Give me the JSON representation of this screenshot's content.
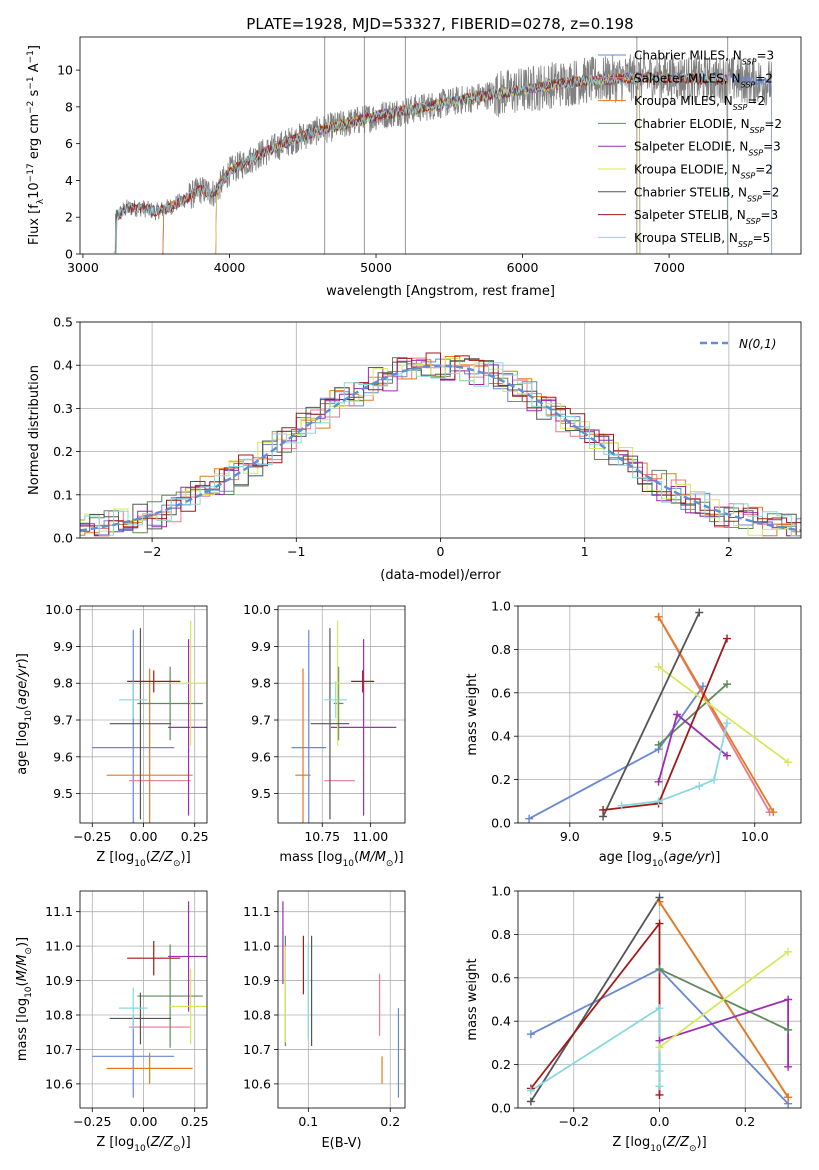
{
  "figure": {
    "title": "PLATE=1928, MJD=53327, FIBERID=0278, z=0.198"
  },
  "colors": {
    "Chabrier MILES": "#6688d5",
    "Salpeter MILES": "#e87a91",
    "Kroupa MILES": "#e27a22",
    "Chabrier ELODIE": "#5f8a5f",
    "Salpeter ELODIE": "#9b2fae",
    "Kroupa ELODIE": "#d8e85a",
    "Chabrier STELIB": "#555555",
    "Salpeter STELIB": "#a11a1a",
    "Kroupa STELIB": "#88d8e0",
    "data": "#808080"
  },
  "chart_data": [
    {
      "panel": "spectrum",
      "type": "line",
      "xlabel": "wavelength [Angstrom, rest frame]",
      "ylabel": "Flux [f_λ10^-17 erg cm^-2 s^-1 A^-1]",
      "xlim": [
        2980,
        7900
      ],
      "ylim": [
        0,
        11.8
      ],
      "xticks": [
        3000,
        4000,
        5000,
        6000,
        7000
      ],
      "yticks": [
        0,
        2,
        4,
        6,
        8,
        10
      ],
      "legend_loc": "upper right",
      "legend": [
        {
          "model": "Chabrier MILES",
          "nssp": "3"
        },
        {
          "model": "Salpeter MILES",
          "nssp": "2"
        },
        {
          "model": "Kroupa MILES",
          "nssp": "2"
        },
        {
          "model": "Chabrier ELODIE",
          "nssp": "2"
        },
        {
          "model": "Salpeter ELODIE",
          "nssp": "3"
        },
        {
          "model": "Kroupa ELODIE",
          "nssp": "2"
        },
        {
          "model": "Chabrier STELIB",
          "nssp": "2"
        },
        {
          "model": "Salpeter STELIB",
          "nssp": "3"
        },
        {
          "model": "Kroupa STELIB",
          "nssp": "5"
        }
      ],
      "continuum": [
        [
          3210,
          0.2
        ],
        [
          3220,
          2.0
        ],
        [
          3300,
          2.5
        ],
        [
          3400,
          2.5
        ],
        [
          3500,
          2.3
        ],
        [
          3600,
          2.6
        ],
        [
          3700,
          3.0
        ],
        [
          3800,
          3.5
        ],
        [
          3900,
          3.3
        ],
        [
          4000,
          4.5
        ],
        [
          4200,
          5.4
        ],
        [
          4400,
          6.1
        ],
        [
          4600,
          6.7
        ],
        [
          4800,
          7.1
        ],
        [
          5000,
          7.5
        ],
        [
          5200,
          7.8
        ],
        [
          5400,
          8.1
        ],
        [
          5600,
          8.4
        ],
        [
          5800,
          8.7
        ],
        [
          6000,
          8.9
        ],
        [
          6200,
          9.2
        ],
        [
          6400,
          9.4
        ],
        [
          6600,
          9.5
        ],
        [
          6800,
          9.6
        ],
        [
          7000,
          9.6
        ],
        [
          7200,
          9.5
        ],
        [
          7400,
          9.5
        ],
        [
          7600,
          9.4
        ],
        [
          7700,
          9.3
        ]
      ],
      "model_starts": [
        {
          "model": "Chabrier MILES",
          "start": 3540,
          "end": 7700
        },
        {
          "model": "Salpeter MILES",
          "start": 3540,
          "end": 7400
        },
        {
          "model": "Kroupa MILES",
          "start": 3540,
          "end": 7400
        },
        {
          "model": "Chabrier ELODIE",
          "start": 3900,
          "end": 6800
        },
        {
          "model": "Salpeter ELODIE",
          "start": 3900,
          "end": 6800
        },
        {
          "model": "Kroupa ELODIE",
          "start": 3900,
          "end": 6800
        },
        {
          "model": "Chabrier STELIB",
          "start": 3220,
          "end": 7400
        },
        {
          "model": "Salpeter STELIB",
          "start": 3220,
          "end": 7400
        },
        {
          "model": "Kroupa STELIB",
          "start": 3220,
          "end": 7400
        }
      ]
    },
    {
      "panel": "residuals",
      "type": "step",
      "xlabel": "(data-model)/error",
      "ylabel": "Normed distribution",
      "xlim": [
        -2.5,
        2.5
      ],
      "ylim": [
        0,
        0.5
      ],
      "xticks": [
        -2,
        -1,
        0,
        1,
        2
      ],
      "yticks": [
        0.0,
        0.1,
        0.2,
        0.3,
        0.4,
        0.5
      ],
      "legend_loc": "upper right",
      "gaussian_label": "N(0,1)",
      "bin_width": 0.1
    },
    {
      "panel": "age_vs_Z",
      "type": "errorbar",
      "xlabel": "Z [log10(Z/Z⊙)]",
      "ylabel": "age  [log10(age/yr)]",
      "xlim": [
        -0.31,
        0.31
      ],
      "ylim": [
        9.42,
        10.01
      ],
      "xticks": [
        -0.25,
        0.0,
        0.25
      ],
      "yticks": [
        9.5,
        9.6,
        9.7,
        9.8,
        9.9,
        10.0
      ],
      "points": [
        {
          "model": "Chabrier MILES",
          "x": -0.05,
          "xerr": 0.2,
          "y": 9.625,
          "yerr": 0.32
        },
        {
          "model": "Salpeter MILES",
          "x": 0.08,
          "xerr": 0.15,
          "y": 9.535,
          "yerr": 0.0
        },
        {
          "model": "Kroupa MILES",
          "x": 0.03,
          "xerr": 0.21,
          "y": 9.55,
          "yerr": 0.29
        },
        {
          "model": "Chabrier ELODIE",
          "x": 0.13,
          "xerr": 0.16,
          "y": 9.745,
          "yerr": 0.1
        },
        {
          "model": "Salpeter ELODIE",
          "x": 0.22,
          "xerr": 0.1,
          "y": 9.68,
          "yerr": 0.24
        },
        {
          "model": "Kroupa ELODIE",
          "x": 0.23,
          "xerr": 0.1,
          "y": 9.8,
          "yerr": 0.17
        },
        {
          "model": "Chabrier STELIB",
          "x": -0.015,
          "xerr": 0.15,
          "y": 9.69,
          "yerr": 0.26
        },
        {
          "model": "Salpeter STELIB",
          "x": 0.05,
          "xerr": 0.13,
          "y": 9.805,
          "yerr": 0.03
        },
        {
          "model": "Kroupa STELIB",
          "x": -0.05,
          "xerr": 0.07,
          "y": 9.755,
          "yerr": 0.05
        }
      ]
    },
    {
      "panel": "age_vs_mass",
      "type": "errorbar",
      "xlabel": "mass [log10(M/M⊙)]",
      "ylabel": "",
      "xlim": [
        10.52,
        11.18
      ],
      "ylim": [
        9.42,
        10.01
      ],
      "xticks": [
        10.75,
        11.0
      ],
      "yticks": [
        9.5,
        9.6,
        9.7,
        9.8,
        9.9,
        10.0
      ],
      "points": [
        {
          "model": "Chabrier MILES",
          "x": 10.68,
          "xerr": 0.09,
          "y": 9.625,
          "yerr": 0.32
        },
        {
          "model": "Salpeter MILES",
          "x": 10.84,
          "xerr": 0.08,
          "y": 9.535,
          "yerr": 0.0
        },
        {
          "model": "Kroupa MILES",
          "x": 10.65,
          "xerr": 0.04,
          "y": 9.55,
          "yerr": 0.29
        },
        {
          "model": "Chabrier ELODIE",
          "x": 10.835,
          "xerr": 0.025,
          "y": 9.745,
          "yerr": 0.1
        },
        {
          "model": "Salpeter ELODIE",
          "x": 10.965,
          "xerr": 0.17,
          "y": 9.68,
          "yerr": 0.24
        },
        {
          "model": "Kroupa ELODIE",
          "x": 10.83,
          "xerr": 0.025,
          "y": 9.8,
          "yerr": 0.17
        },
        {
          "model": "Chabrier STELIB",
          "x": 10.79,
          "xerr": 0.1,
          "y": 9.69,
          "yerr": 0.26
        },
        {
          "model": "Salpeter STELIB",
          "x": 10.96,
          "xerr": 0.06,
          "y": 9.805,
          "yerr": 0.03
        },
        {
          "model": "Kroupa STELIB",
          "x": 10.82,
          "xerr": 0.06,
          "y": 9.755,
          "yerr": 0.05
        }
      ]
    },
    {
      "panel": "weight_vs_age",
      "type": "line",
      "xlabel": "age  [log10(age/yr)]",
      "ylabel": "mass weight",
      "xlim": [
        8.72,
        10.25
      ],
      "ylim": [
        0,
        1
      ],
      "xticks": [
        9.0,
        9.5,
        10.0
      ],
      "yticks": [
        0.0,
        0.2,
        0.4,
        0.6,
        0.8,
        1.0
      ],
      "series": [
        {
          "model": "Chabrier MILES",
          "x": [
            8.78,
            9.48,
            9.72
          ],
          "y": [
            0.02,
            0.34,
            0.63
          ]
        },
        {
          "model": "Salpeter MILES",
          "x": [
            9.48,
            10.08
          ],
          "y": [
            0.95,
            0.05
          ]
        },
        {
          "model": "Kroupa MILES",
          "x": [
            9.48,
            10.1
          ],
          "y": [
            0.95,
            0.05
          ]
        },
        {
          "model": "Chabrier ELODIE",
          "x": [
            9.48,
            9.85
          ],
          "y": [
            0.36,
            0.64
          ]
        },
        {
          "model": "Salpeter ELODIE",
          "x": [
            9.48,
            9.58,
            9.85
          ],
          "y": [
            0.19,
            0.5,
            0.31
          ]
        },
        {
          "model": "Kroupa ELODIE",
          "x": [
            9.48,
            10.18
          ],
          "y": [
            0.72,
            0.28
          ]
        },
        {
          "model": "Chabrier STELIB",
          "x": [
            9.18,
            9.7
          ],
          "y": [
            0.03,
            0.97
          ]
        },
        {
          "model": "Salpeter STELIB",
          "x": [
            9.18,
            9.48,
            9.85
          ],
          "y": [
            0.06,
            0.09,
            0.85
          ]
        },
        {
          "model": "Kroupa STELIB",
          "x": [
            9.28,
            9.48,
            9.7,
            9.78,
            9.85
          ],
          "y": [
            0.08,
            0.1,
            0.17,
            0.2,
            0.46
          ]
        }
      ]
    },
    {
      "panel": "mass_vs_Z",
      "type": "errorbar",
      "xlabel": "Z [log10(Z/Z⊙)]",
      "ylabel": "mass [log10(M/M⊙)]",
      "xlim": [
        -0.31,
        0.31
      ],
      "ylim": [
        10.53,
        11.16
      ],
      "xticks": [
        -0.25,
        0.0,
        0.25
      ],
      "yticks": [
        10.6,
        10.7,
        10.8,
        10.9,
        11.0,
        11.1
      ],
      "points": [
        {
          "model": "Chabrier MILES",
          "x": -0.05,
          "xerr": 0.2,
          "y": 10.68,
          "yerr": 0.12
        },
        {
          "model": "Salpeter MILES",
          "x": 0.08,
          "xerr": 0.15,
          "y": 10.765,
          "yerr": 0.0
        },
        {
          "model": "Kroupa MILES",
          "x": 0.03,
          "xerr": 0.21,
          "y": 10.645,
          "yerr": 0.045
        },
        {
          "model": "Chabrier ELODIE",
          "x": 0.13,
          "xerr": 0.16,
          "y": 10.855,
          "yerr": 0.15
        },
        {
          "model": "Salpeter ELODIE",
          "x": 0.22,
          "xerr": 0.1,
          "y": 10.97,
          "yerr": 0.16
        },
        {
          "model": "Kroupa ELODIE",
          "x": 0.23,
          "xerr": 0.1,
          "y": 10.825,
          "yerr": 0.11
        },
        {
          "model": "Chabrier STELIB",
          "x": -0.015,
          "xerr": 0.15,
          "y": 10.79,
          "yerr": 0.075
        },
        {
          "model": "Salpeter STELIB",
          "x": 0.05,
          "xerr": 0.13,
          "y": 10.965,
          "yerr": 0.05
        },
        {
          "model": "Kroupa STELIB",
          "x": -0.05,
          "xerr": 0.07,
          "y": 10.82,
          "yerr": 0.06
        }
      ]
    },
    {
      "panel": "mass_vs_ebv",
      "type": "errorbar",
      "xlabel": "E(B-V)",
      "ylabel": "",
      "xlim": [
        0.063,
        0.218
      ],
      "ylim": [
        10.53,
        11.16
      ],
      "xticks": [
        0.1,
        0.2
      ],
      "yticks": [
        10.6,
        10.7,
        10.8,
        10.9,
        11.0,
        11.1
      ],
      "points": [
        {
          "model": "Chabrier MILES",
          "x": 0.21,
          "xerr": 0.0,
          "y": 10.69,
          "yerr": 0.13
        },
        {
          "model": "Salpeter MILES",
          "x": 0.187,
          "xerr": 0.0,
          "y": 10.83,
          "yerr": 0.09
        },
        {
          "model": "Kroupa MILES",
          "x": 0.19,
          "xerr": 0.0,
          "y": 10.64,
          "yerr": 0.04
        },
        {
          "model": "Chabrier ELODIE",
          "x": 0.072,
          "xerr": 0.0,
          "y": 10.87,
          "yerr": 0.16
        },
        {
          "model": "Salpeter ELODIE",
          "x": 0.069,
          "xerr": 0.0,
          "y": 11.01,
          "yerr": 0.12
        },
        {
          "model": "Kroupa ELODIE",
          "x": 0.072,
          "xerr": 0.0,
          "y": 10.86,
          "yerr": 0.14
        },
        {
          "model": "Chabrier STELIB",
          "x": 0.104,
          "xerr": 0.0,
          "y": 10.87,
          "yerr": 0.16
        },
        {
          "model": "Salpeter STELIB",
          "x": 0.094,
          "xerr": 0.0,
          "y": 10.945,
          "yerr": 0.085
        },
        {
          "model": "Kroupa STELIB",
          "x": 0.1,
          "xerr": 0.0,
          "y": 10.87,
          "yerr": 0.14
        }
      ]
    },
    {
      "panel": "weight_vs_Z",
      "type": "line",
      "xlabel": "Z [log10(Z/Z⊙)]",
      "ylabel": "mass weight",
      "xlim": [
        -0.33,
        0.33
      ],
      "ylim": [
        0,
        1
      ],
      "xticks": [
        -0.2,
        0.0,
        0.2
      ],
      "yticks": [
        0.0,
        0.2,
        0.4,
        0.6,
        0.8,
        1.0
      ],
      "series": [
        {
          "model": "Chabrier MILES",
          "x": [
            -0.3,
            0.0,
            0.3
          ],
          "y": [
            0.34,
            0.64,
            0.02
          ]
        },
        {
          "model": "Salpeter MILES",
          "x": [
            0.0,
            0.3
          ],
          "y": [
            0.95,
            0.05
          ]
        },
        {
          "model": "Kroupa MILES",
          "x": [
            0.0,
            0.3
          ],
          "y": [
            0.95,
            0.05
          ]
        },
        {
          "model": "Chabrier ELODIE",
          "x": [
            0.0,
            0.3
          ],
          "y": [
            0.64,
            0.36
          ]
        },
        {
          "model": "Salpeter ELODIE",
          "x": [
            0.0,
            0.3,
            0.3
          ],
          "y": [
            0.31,
            0.5,
            0.19
          ]
        },
        {
          "model": "Kroupa ELODIE",
          "x": [
            0.0,
            0.3
          ],
          "y": [
            0.28,
            0.72
          ]
        },
        {
          "model": "Chabrier STELIB",
          "x": [
            -0.3,
            0.0
          ],
          "y": [
            0.03,
            0.97
          ]
        },
        {
          "model": "Salpeter STELIB",
          "x": [
            -0.3,
            0.0,
            0.0
          ],
          "y": [
            0.09,
            0.85,
            0.06
          ]
        },
        {
          "model": "Kroupa STELIB",
          "x": [
            -0.3,
            0.0,
            0.0,
            0.0,
            0.0
          ],
          "y": [
            0.08,
            0.46,
            0.2,
            0.17,
            0.1
          ]
        }
      ]
    }
  ]
}
